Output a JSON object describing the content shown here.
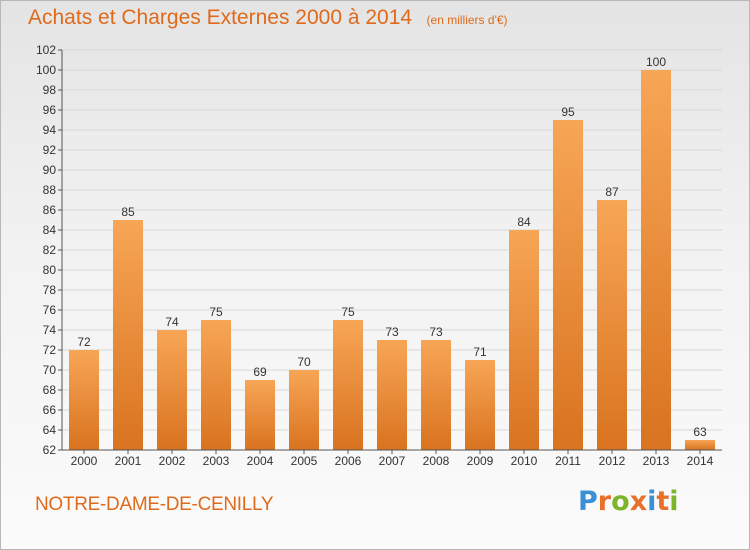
{
  "header": {
    "title": "Achats et Charges Externes 2000 à 2014",
    "subtitle": "(en milliers d'€)"
  },
  "footer": {
    "commune": "NOTRE-DAME-DE-CENILLY",
    "logo_text": "Proxiti",
    "logo_colors": [
      "#3b8fd6",
      "#e8702a",
      "#7cb52a",
      "#e8702a",
      "#3b8fd6",
      "#e8702a",
      "#7cb52a"
    ]
  },
  "colors": {
    "bar_top": "#f7a656",
    "bar_bottom": "#d9731f",
    "title": "#e06a1b",
    "axis": "#555555",
    "grid": "#d8d8d8"
  },
  "chart_data": {
    "type": "bar",
    "categories": [
      "2000",
      "2001",
      "2002",
      "2003",
      "2004",
      "2005",
      "2006",
      "2007",
      "2008",
      "2009",
      "2010",
      "2011",
      "2012",
      "2013",
      "2014"
    ],
    "values": [
      72,
      85,
      74,
      75,
      69,
      70,
      75,
      73,
      73,
      71,
      84,
      95,
      87,
      100,
      63
    ],
    "ylim": [
      62,
      102
    ],
    "yticks": [
      62,
      64,
      66,
      68,
      70,
      72,
      74,
      76,
      78,
      80,
      82,
      84,
      86,
      88,
      90,
      92,
      94,
      96,
      98,
      100,
      102
    ],
    "grid": true,
    "legend": "none"
  }
}
